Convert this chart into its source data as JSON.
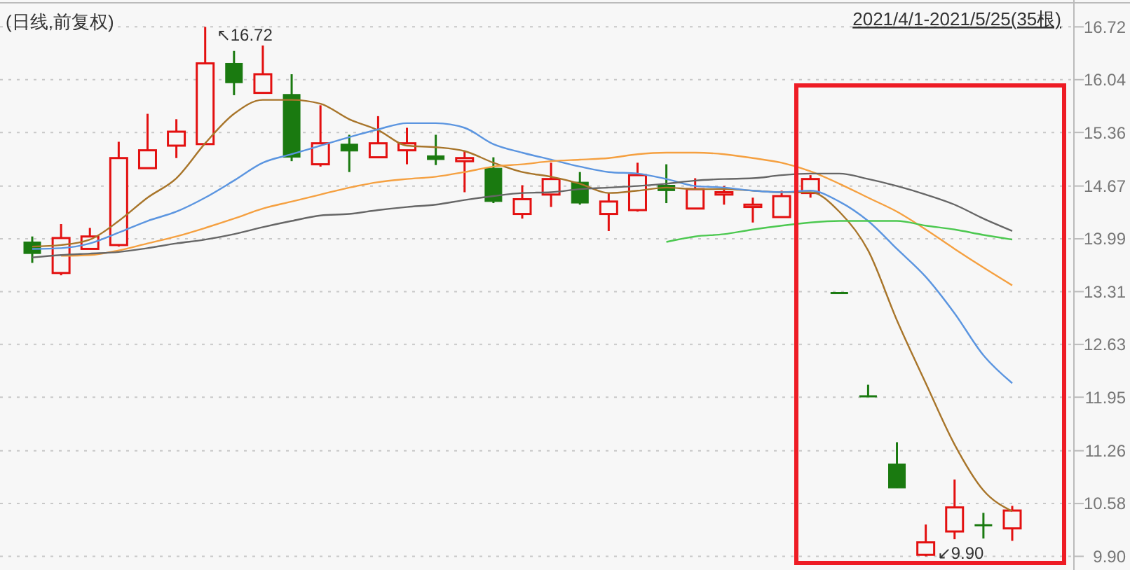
{
  "chart_data": {
    "type": "candlestick",
    "title": "(日线,前复权)",
    "subtitle": "2021/4/1-2021/5/25(35根)",
    "categories": [
      null,
      null,
      null,
      null,
      null,
      null,
      null,
      null,
      null,
      null,
      null,
      null,
      null,
      null,
      null,
      null,
      null,
      null,
      null,
      null,
      null,
      null,
      null,
      null,
      null,
      null,
      null,
      null,
      null,
      null,
      null,
      null,
      null,
      null,
      null
    ],
    "ohlc": [
      [
        13.95,
        14.02,
        13.68,
        13.8
      ],
      [
        13.55,
        14.18,
        13.52,
        14.0
      ],
      [
        13.86,
        14.13,
        13.86,
        14.02
      ],
      [
        13.91,
        15.24,
        13.89,
        15.03
      ],
      [
        14.9,
        15.6,
        14.9,
        15.13
      ],
      [
        15.19,
        15.53,
        15.03,
        15.37
      ],
      [
        15.21,
        16.72,
        15.21,
        16.25
      ],
      [
        16.25,
        16.41,
        15.84,
        16.0
      ],
      [
        15.87,
        16.48,
        15.87,
        16.11
      ],
      [
        15.85,
        16.11,
        14.99,
        15.04
      ],
      [
        14.95,
        15.71,
        14.92,
        15.22
      ],
      [
        15.21,
        15.33,
        14.85,
        15.12
      ],
      [
        15.04,
        15.57,
        15.04,
        15.22
      ],
      [
        15.13,
        15.42,
        14.95,
        15.22
      ],
      [
        15.06,
        15.33,
        14.94,
        15.01
      ],
      [
        14.99,
        15.12,
        14.59,
        15.03
      ],
      [
        14.9,
        15.04,
        14.45,
        14.47
      ],
      [
        14.31,
        14.68,
        14.25,
        14.5
      ],
      [
        14.56,
        14.97,
        14.4,
        14.76
      ],
      [
        14.72,
        14.85,
        14.43,
        14.45
      ],
      [
        14.31,
        14.58,
        14.09,
        14.47
      ],
      [
        14.36,
        14.97,
        14.34,
        14.81
      ],
      [
        14.68,
        14.95,
        14.45,
        14.61
      ],
      [
        14.38,
        14.77,
        14.38,
        14.63
      ],
      [
        14.56,
        14.67,
        14.43,
        14.59
      ],
      [
        14.4,
        14.52,
        14.2,
        14.43
      ],
      [
        14.27,
        14.61,
        14.27,
        14.54
      ],
      [
        14.58,
        14.81,
        14.52,
        14.76
      ],
      [
        13.3,
        13.3,
        13.3,
        13.3
      ],
      [
        11.97,
        12.11,
        11.97,
        11.97
      ],
      [
        11.09,
        11.37,
        10.78,
        10.78
      ],
      [
        9.92,
        10.31,
        9.9,
        10.08
      ],
      [
        10.22,
        10.89,
        10.12,
        10.53
      ],
      [
        10.31,
        10.46,
        10.13,
        10.3
      ],
      [
        10.26,
        10.55,
        10.1,
        10.49
      ]
    ],
    "colors": [
      "#1a7a10",
      "#e31010",
      "#e31010",
      "#e31010",
      "#e31010",
      "#e31010",
      "#e31010",
      "#1a7a10",
      "#e31010",
      "#1a7a10",
      "#e31010",
      "#1a7a10",
      "#e31010",
      "#e31010",
      "#1a7a10",
      "#e31010",
      "#1a7a10",
      "#e31010",
      "#e31010",
      "#1a7a10",
      "#e31010",
      "#e31010",
      "#1a7a10",
      "#e31010",
      "#e31010",
      "#e31010",
      "#e31010",
      "#e31010",
      "#1a7a10",
      "#1a7a10",
      "#1a7a10",
      "#e31010",
      "#e31010",
      "#1a7a10",
      "#e31010"
    ],
    "series": [
      {
        "type": "line",
        "color": "#a8752a",
        "values": [
          13.89,
          13.91,
          13.98,
          14.22,
          14.52,
          14.77,
          15.22,
          15.6,
          15.78,
          15.78,
          15.73,
          15.53,
          15.39,
          15.19,
          15.17,
          15.12,
          14.97,
          14.85,
          14.79,
          14.7,
          14.58,
          14.61,
          14.65,
          14.63,
          14.63,
          14.61,
          14.59,
          14.59,
          14.34,
          13.84,
          12.94,
          12.13,
          11.34,
          10.75,
          10.48
        ]
      },
      {
        "type": "line",
        "color": "#5b95e0",
        "values": [
          13.86,
          13.87,
          13.93,
          14.07,
          14.22,
          14.34,
          14.52,
          14.74,
          14.97,
          15.08,
          15.19,
          15.3,
          15.4,
          15.48,
          15.48,
          15.42,
          15.21,
          15.1,
          15.01,
          14.92,
          14.85,
          14.83,
          14.76,
          14.67,
          14.65,
          14.61,
          14.59,
          14.61,
          14.47,
          14.22,
          13.86,
          13.5,
          13.03,
          12.49,
          12.13
        ]
      },
      {
        "type": "line",
        "color": "#f5a040",
        "values": [
          null,
          13.77,
          13.78,
          13.84,
          13.93,
          14.02,
          14.13,
          14.25,
          14.38,
          14.47,
          14.56,
          14.65,
          14.72,
          14.76,
          14.79,
          14.85,
          14.92,
          14.95,
          14.99,
          15.01,
          15.03,
          15.08,
          15.1,
          15.1,
          15.08,
          15.03,
          14.97,
          14.86,
          14.7,
          14.52,
          14.34,
          14.11,
          13.86,
          13.62,
          13.39
        ]
      },
      {
        "type": "line",
        "color": "#666666",
        "values": [
          13.75,
          13.78,
          13.8,
          13.82,
          13.87,
          13.93,
          13.98,
          14.05,
          14.14,
          14.22,
          14.29,
          14.31,
          14.36,
          14.4,
          14.43,
          14.49,
          14.54,
          14.58,
          14.59,
          14.63,
          14.65,
          14.67,
          14.7,
          14.74,
          14.76,
          14.77,
          14.81,
          14.83,
          14.83,
          14.76,
          14.67,
          14.56,
          14.43,
          14.25,
          14.09
        ]
      },
      {
        "type": "line",
        "color": "#4cc850",
        "values": [
          null,
          null,
          null,
          null,
          null,
          null,
          null,
          null,
          null,
          null,
          null,
          null,
          null,
          null,
          null,
          null,
          null,
          null,
          null,
          null,
          null,
          null,
          13.95,
          14.02,
          14.05,
          14.11,
          14.16,
          14.2,
          14.22,
          14.22,
          14.22,
          14.16,
          14.11,
          14.04,
          13.98
        ]
      }
    ],
    "ylim": [
      9.76,
      17.03
    ],
    "yticks": [
      {
        "value": 9.9,
        "label": "9.90"
      },
      10.58,
      11.26,
      11.95,
      12.63,
      13.31,
      13.99,
      14.67,
      15.36,
      16.04,
      16.72
    ],
    "grid": "y",
    "annotations": [
      "↖16.72",
      "↙9.90"
    ]
  }
}
